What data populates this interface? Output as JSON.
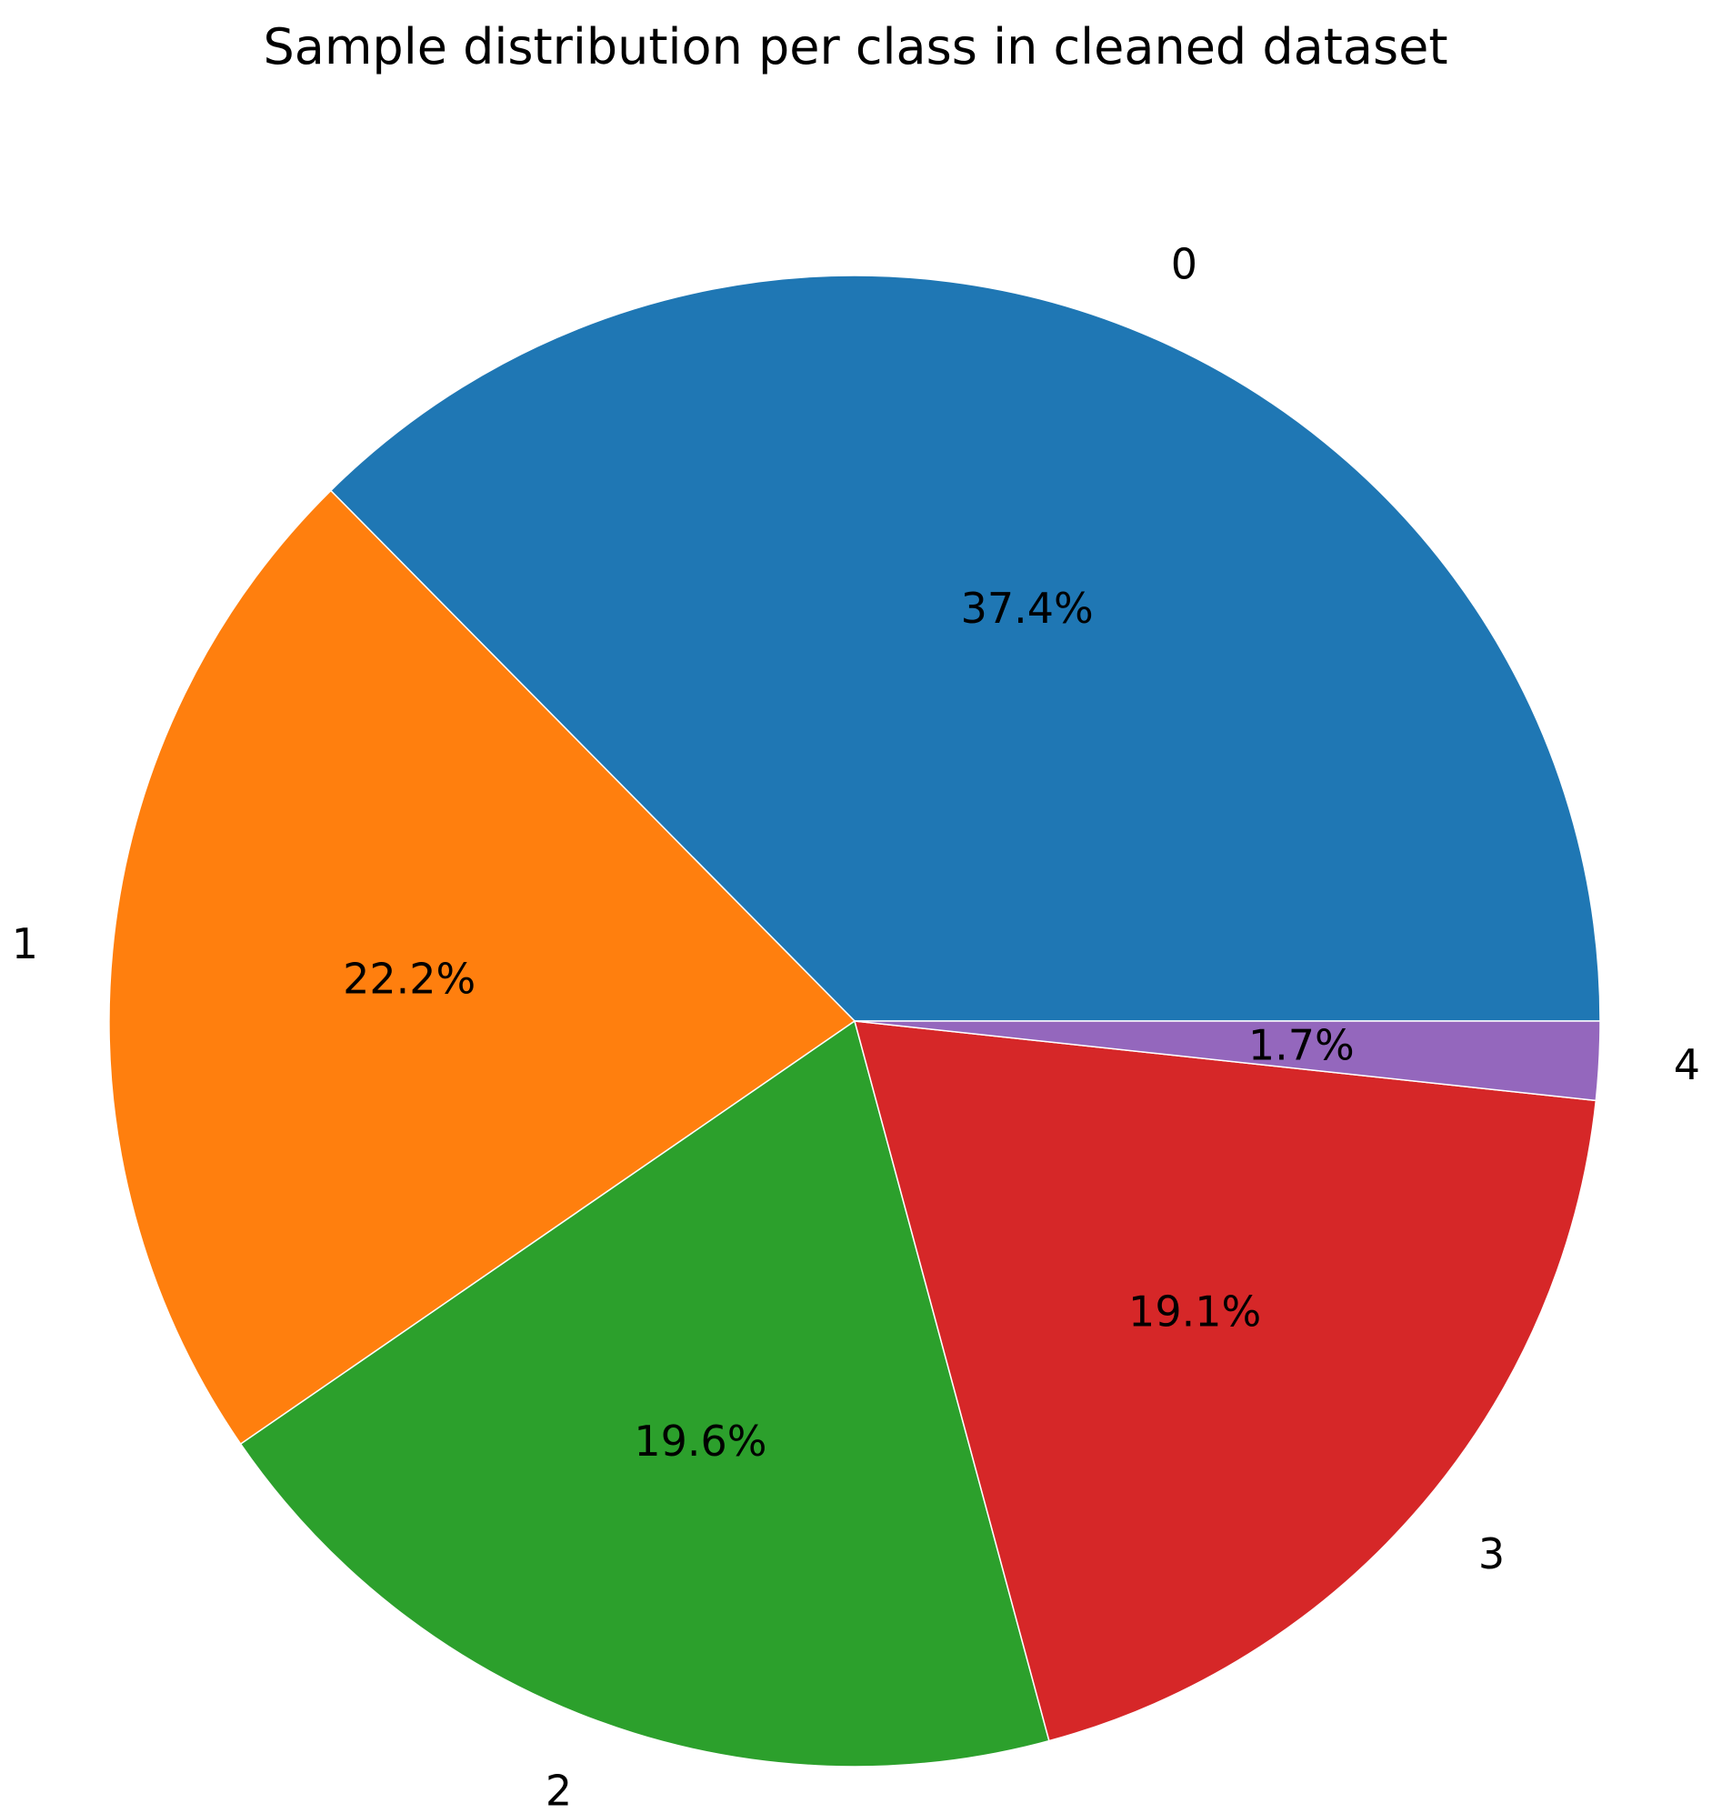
{
  "chart_data": {
    "type": "pie",
    "title": "Sample distribution per class in cleaned dataset",
    "categories": [
      "0",
      "1",
      "2",
      "3",
      "4"
    ],
    "values": [
      37.4,
      22.2,
      19.6,
      19.1,
      1.7
    ],
    "value_labels": [
      "37.4%",
      "22.2%",
      "19.6%",
      "19.1%",
      "1.7%"
    ],
    "colors": [
      "#1f77b4",
      "#ff7f0e",
      "#2ca02c",
      "#d62728",
      "#9467bd"
    ],
    "start_angle_deg": 0,
    "direction": "counterclockwise",
    "legend": "none"
  }
}
